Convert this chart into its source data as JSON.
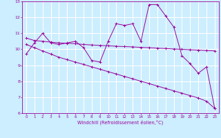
{
  "x": [
    0,
    1,
    2,
    3,
    4,
    5,
    6,
    7,
    8,
    9,
    10,
    11,
    12,
    13,
    14,
    15,
    16,
    17,
    18,
    19,
    20,
    21,
    22,
    23
  ],
  "line1": [
    9.7,
    10.4,
    11.0,
    10.4,
    10.3,
    10.4,
    10.5,
    10.1,
    9.3,
    9.2,
    10.5,
    11.6,
    11.5,
    11.6,
    10.5,
    12.8,
    12.8,
    12.1,
    11.4,
    9.6,
    9.1,
    8.5,
    8.9,
    6.3
  ],
  "line2": [
    10.7,
    10.55,
    10.5,
    10.45,
    10.4,
    10.38,
    10.35,
    10.3,
    10.27,
    10.24,
    10.22,
    10.19,
    10.17,
    10.15,
    10.12,
    10.1,
    10.07,
    10.05,
    10.02,
    10.0,
    9.97,
    9.95,
    9.92,
    9.9
  ],
  "line3": [
    10.3,
    10.1,
    9.9,
    9.7,
    9.5,
    9.35,
    9.2,
    9.05,
    8.9,
    8.75,
    8.6,
    8.45,
    8.3,
    8.15,
    8.0,
    7.85,
    7.7,
    7.55,
    7.4,
    7.25,
    7.1,
    6.95,
    6.75,
    6.3
  ],
  "color": "#990099",
  "bg_color": "#cceeff",
  "grid_color": "#ffffff",
  "xlabel": "Windchill (Refroidissement éolien,°C)",
  "ylim": [
    6,
    13
  ],
  "xlim": [
    -0.5,
    23.5
  ],
  "yticks": [
    6,
    7,
    8,
    9,
    10,
    11,
    12,
    13
  ],
  "xticks": [
    0,
    1,
    2,
    3,
    4,
    5,
    6,
    7,
    8,
    9,
    10,
    11,
    12,
    13,
    14,
    15,
    16,
    17,
    18,
    19,
    20,
    21,
    22,
    23
  ]
}
